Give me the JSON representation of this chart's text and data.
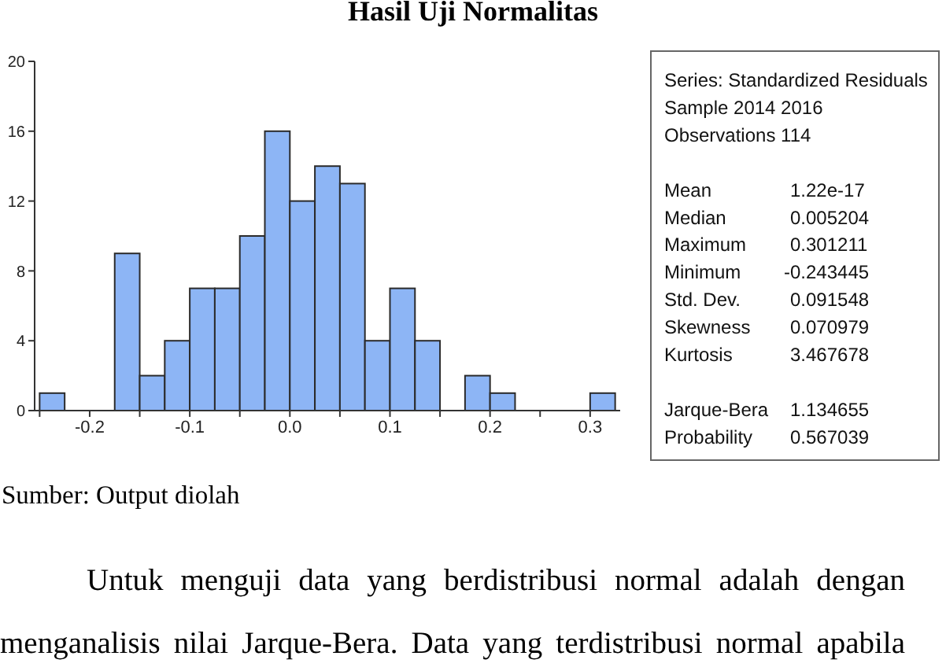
{
  "chart_data": [
    {
      "type": "histogram",
      "title": "Hasil Uji Normalitas",
      "bins": [
        -0.25,
        -0.225,
        -0.2,
        -0.175,
        -0.15,
        -0.125,
        -0.1,
        -0.075,
        -0.05,
        -0.025,
        0,
        0.025,
        0.05,
        0.075,
        0.1,
        0.125,
        0.15,
        0.175,
        0.2,
        0.225,
        0.25,
        0.275,
        0.3,
        0.325
      ],
      "values": [
        1,
        0,
        0,
        9,
        2,
        4,
        7,
        7,
        10,
        16,
        12,
        14,
        13,
        4,
        7,
        4,
        0,
        2,
        1,
        0,
        0,
        0,
        1
      ],
      "color": "#8db5f5",
      "xlim": [
        -0.255,
        0.33
      ],
      "ylim": [
        0,
        20
      ],
      "xticks": [
        {
          "value": -0.25,
          "label": null
        },
        -0.2,
        {
          "value": -0.15,
          "label": null
        },
        -0.1,
        {
          "value": -0.05,
          "label": null
        },
        {
          "value": 0,
          "label": "0.0"
        },
        {
          "value": 0.05,
          "label": null
        },
        0.1,
        {
          "value": 0.15,
          "label": null
        },
        0.2,
        {
          "value": 0.25,
          "label": null
        },
        0.3
      ],
      "yticks": [
        0,
        4,
        8,
        12,
        16,
        20
      ],
      "annotations": [
        "Sumber: Output diolah",
        "Untuk menguji data yang berdistribusi normal adalah dengan menganalisis nilai Jarque-Bera. Data yang terdistribusi normal apabila"
      ]
    },
    {
      "type": "other",
      "title": "Series: Standardized Residuals",
      "annotations": [
        "Sample 2014 2016",
        "Observations 114",
        "Mean",
        "1.22e-17",
        "Median",
        "0.005204",
        "Maximum",
        "0.301211",
        "Minimum",
        "-0.243445",
        "Std. Dev.",
        "0.091548",
        "Skewness",
        "0.070979",
        "Kurtosis",
        "3.467678",
        "Jarque-Bera",
        "1.134655",
        "Probability",
        "0.567039"
      ]
    }
  ]
}
